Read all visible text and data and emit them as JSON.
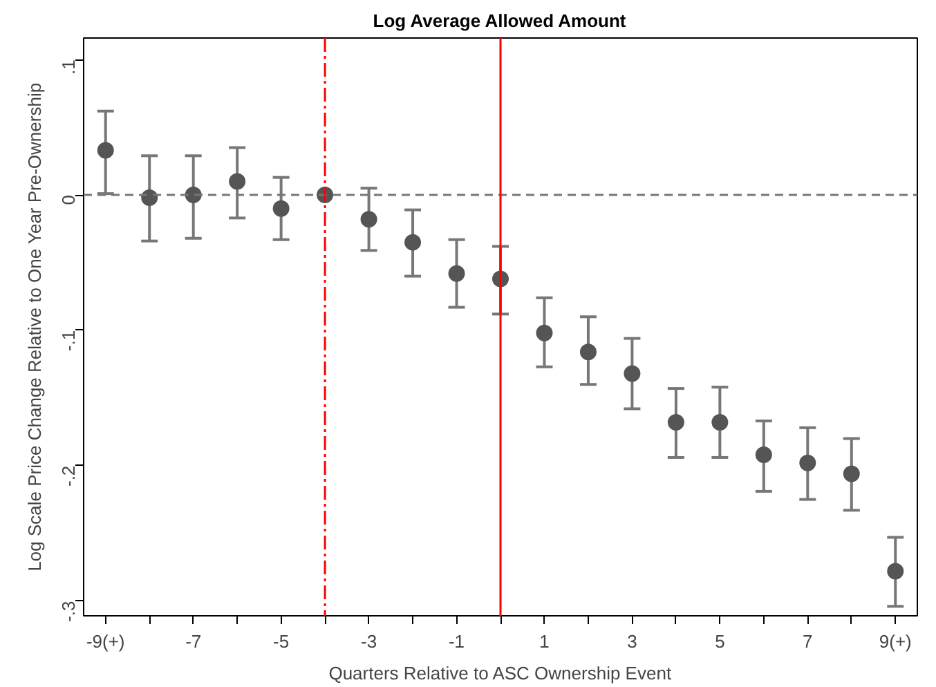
{
  "chart_data": {
    "type": "scatter",
    "title": "Log Average Allowed Amount",
    "xlabel": "Quarters Relative to ASC Ownership Event",
    "ylabel": "Log Scale Price Change Relative to One Year Pre-Ownership",
    "x": [
      -9,
      -8,
      -7,
      -6,
      -5,
      -4,
      -3,
      -2,
      -1,
      0,
      1,
      2,
      3,
      4,
      5,
      6,
      7,
      8,
      9
    ],
    "series": [
      {
        "color": "#555555",
        "values": [
          0.033,
          -0.002,
          0.0,
          0.01,
          -0.01,
          0.0,
          -0.018,
          -0.035,
          -0.058,
          -0.062,
          -0.102,
          -0.116,
          -0.132,
          -0.168,
          -0.168,
          -0.192,
          -0.198,
          -0.206,
          -0.278
        ],
        "errors": [
          [
            0.001,
            0.062
          ],
          [
            -0.034,
            0.029
          ],
          [
            -0.032,
            0.029
          ],
          [
            -0.017,
            0.035
          ],
          [
            -0.033,
            0.013
          ],
          null,
          [
            -0.041,
            0.005
          ],
          [
            -0.06,
            -0.011
          ],
          [
            -0.083,
            -0.033
          ],
          [
            -0.088,
            -0.038
          ],
          [
            -0.127,
            -0.076
          ],
          [
            -0.14,
            -0.09
          ],
          [
            -0.158,
            -0.106
          ],
          [
            -0.194,
            -0.143
          ],
          [
            -0.194,
            -0.142
          ],
          [
            -0.219,
            -0.167
          ],
          [
            -0.225,
            -0.172
          ],
          [
            -0.233,
            -0.18
          ],
          [
            -0.304,
            -0.253
          ]
        ]
      }
    ],
    "marker": "circle",
    "xlim": [
      -9.5,
      9.5
    ],
    "ylim": [
      -0.311,
      0.116
    ],
    "xticks": [
      {
        "value": -9,
        "label": "-9(+)"
      },
      {
        "value": -8,
        "label": null
      },
      -7,
      {
        "value": -6,
        "label": null
      },
      -5,
      {
        "value": -4,
        "label": null
      },
      -3,
      {
        "value": -2,
        "label": null
      },
      -1,
      {
        "value": 0,
        "label": null
      },
      1,
      {
        "value": 2,
        "label": null
      },
      3,
      {
        "value": 4,
        "label": null
      },
      5,
      {
        "value": 6,
        "label": null
      },
      7,
      {
        "value": 8,
        "label": null
      },
      {
        "value": 9,
        "label": "9(+)"
      }
    ],
    "yticks": [
      {
        "value": 0.1,
        "label": ".1"
      },
      0,
      {
        "value": -0.1,
        "label": "-.1"
      },
      {
        "value": -0.2,
        "label": "-.2"
      },
      {
        "value": -0.3,
        "label": "-.3"
      }
    ],
    "ref_lines": [
      {
        "axis": "y",
        "value": 0,
        "color": "#777777",
        "line_style": "dashed"
      },
      {
        "axis": "x",
        "value": -4,
        "color": "#ff0000",
        "line_style": "dashdot"
      },
      {
        "axis": "x",
        "value": 0,
        "color": "#ff0000",
        "line_style": "solid"
      }
    ],
    "grid": false
  }
}
